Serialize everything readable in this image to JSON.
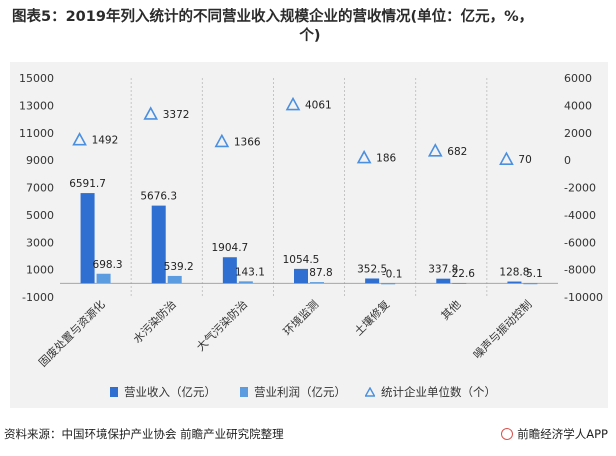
{
  "title": {
    "line1": "图表5：2019年列入统计的不同营业收入规模企业的营收情况(单位：亿元，%，",
    "line2": "个)"
  },
  "legend": {
    "revenue": "营业收入（亿元）",
    "profit": "营业利润（亿元）",
    "count": "统计企业单位数（个）"
  },
  "source": "资料来源：中国环境保护产业协会 前瞻产业研究院整理",
  "brand": "前瞻经济学人APP",
  "colors": {
    "revenue": "#2e6fd1",
    "profit": "#5b9be0",
    "count": "#4a8fe0",
    "background": "#f2f2f2"
  },
  "chart_data": {
    "type": "bar",
    "categories": [
      "固废处置与资源化",
      "水污染防治",
      "大气污染防治",
      "环境监测",
      "土壤修复",
      "其他",
      "噪声与振动控制"
    ],
    "series": [
      {
        "name": "营业收入（亿元）",
        "type": "bar",
        "axis": "left",
        "values": [
          6591.7,
          5676.3,
          1904.7,
          1054.5,
          352.5,
          337.8,
          128.8
        ],
        "labels": [
          "6591.7",
          "5676.3",
          "1904.7",
          "1054.5",
          "352.5",
          "337.8",
          "128.8"
        ]
      },
      {
        "name": "营业利润（亿元）",
        "type": "bar",
        "axis": "left",
        "values": [
          698.3,
          539.2,
          143.1,
          87.8,
          -0.1,
          22.6,
          5.1
        ],
        "labels": [
          "698.3",
          "539.2",
          "143.1",
          "87.8",
          "-0.1",
          "22.6",
          "5.1"
        ]
      },
      {
        "name": "统计企业单位数（个）",
        "type": "scatter",
        "marker": "triangle-open",
        "axis": "right",
        "values": [
          1492,
          3372,
          1366,
          4061,
          186,
          682,
          70
        ],
        "labels": [
          "1492",
          "3372",
          "1366",
          "4061",
          "186",
          "682",
          "70"
        ]
      }
    ],
    "left_axis": {
      "ylim": [
        -1000,
        15000
      ],
      "ticks": [
        "15000",
        "13000",
        "11000",
        "9000",
        "7000",
        "5000",
        "3000",
        "1000",
        "-1000"
      ]
    },
    "right_axis": {
      "ylim": [
        -10000,
        6000
      ],
      "ticks": [
        "6000",
        "4000",
        "2000",
        "0",
        "-2000",
        "-4000",
        "-6000",
        "-8000",
        "-10000"
      ]
    },
    "legend_position": "bottom"
  }
}
